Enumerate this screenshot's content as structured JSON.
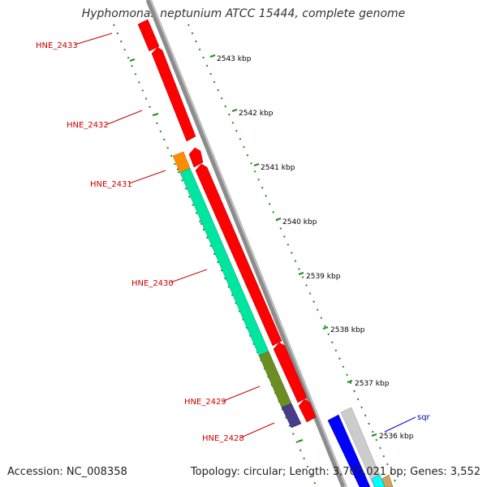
{
  "title": "Hyphomonas neptunium ATCC 15444, complete genome",
  "footer": {
    "accession": "Accession: NC_008358",
    "summary": "Topology: circular; Length: 3,705,021 bp; Genes: 3,552"
  },
  "axis_ticks": [
    {
      "label": "2543 kbp"
    },
    {
      "label": "2542 kbp"
    },
    {
      "label": "2541 kbp"
    },
    {
      "label": "2540 kbp"
    },
    {
      "label": "2539 kbp"
    },
    {
      "label": "2538 kbp"
    },
    {
      "label": "2537 kbp"
    },
    {
      "label": "2536 kbp"
    }
  ],
  "genes": [
    {
      "name": "HNE_2433",
      "color": "#ff0000"
    },
    {
      "name": "HNE_2432",
      "color": "#ff0000"
    },
    {
      "name": "HNE_2431",
      "color": "#ff8c00"
    },
    {
      "name": "HNE_2430",
      "color": "#00e6a0"
    },
    {
      "name": "HNE_2429",
      "color": "#6b8e23"
    },
    {
      "name": "HNE_2428",
      "color": "#483d8b"
    },
    {
      "name": "sqr",
      "color": "#0000ff"
    }
  ],
  "colors": {
    "backbone": "#888888",
    "label_red": "#cc0000",
    "label_blue": "#0000cc",
    "tick_green": "#228b22"
  }
}
